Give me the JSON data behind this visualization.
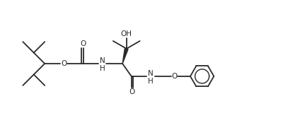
{
  "bg_color": "#ffffff",
  "line_color": "#2a2a2a",
  "lw": 1.3,
  "figsize": [
    4.24,
    1.74
  ],
  "dpi": 100,
  "xlim": [
    0,
    10.6
  ],
  "ylim": [
    0,
    4.35
  ]
}
